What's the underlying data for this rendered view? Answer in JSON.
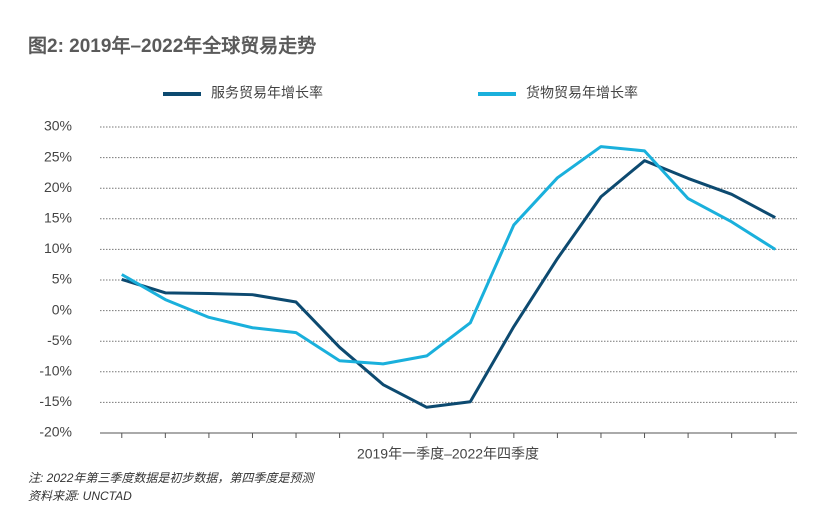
{
  "chart_data": {
    "type": "line",
    "title": "图2: 2019年–2022年全球贸易走势",
    "x_label": "2019年一季度–2022年四季度",
    "notes": [
      "注: 2022年第三季度数据是初步数据，第四季度是预测",
      "资料来源: UNCTAD"
    ],
    "categories": [
      null,
      null,
      null,
      null,
      null,
      null,
      null,
      null,
      null,
      null,
      null,
      null,
      null,
      null,
      null,
      null
    ],
    "series": [
      {
        "name": "服务贸易年增长率",
        "color": "#0d4a70",
        "values": [
          5.1,
          2.9,
          2.8,
          2.6,
          1.4,
          -6,
          -12.1,
          -15.8,
          -14.9,
          -2.6,
          8.5,
          18.6,
          24.5,
          21.6,
          19,
          15.2
        ]
      },
      {
        "name": "货物贸易年增长率",
        "color": "#1ab0dc",
        "values": [
          5.9,
          1.8,
          -1.1,
          -2.8,
          -3.6,
          -8.2,
          -8.7,
          -7.4,
          -2,
          14,
          21.7,
          26.8,
          26.1,
          18.3,
          14.5,
          10
        ]
      }
    ],
    "ylim": [
      -20,
      30
    ],
    "yticks": [
      {
        "value": -20,
        "label": "-20%"
      },
      {
        "value": -15,
        "label": "-15%"
      },
      {
        "value": -10,
        "label": "-10%"
      },
      {
        "value": -5,
        "label": "-5%"
      },
      {
        "value": 0,
        "label": "0%"
      },
      {
        "value": 5,
        "label": "5%"
      },
      {
        "value": 10,
        "label": "10%"
      },
      {
        "value": 15,
        "label": "15%"
      },
      {
        "value": 20,
        "label": "20%"
      },
      {
        "value": 25,
        "label": "25%"
      },
      {
        "value": 30,
        "label": "30%"
      }
    ],
    "grid": true
  }
}
